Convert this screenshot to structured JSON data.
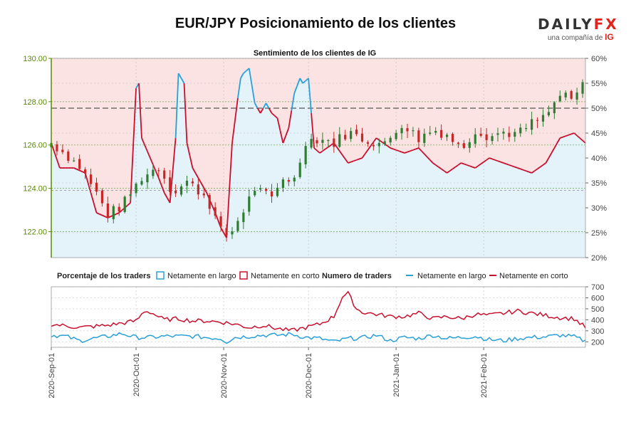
{
  "title": "EUR/JPY Posicionamiento de los clientes",
  "logo": {
    "brand_a": "DAILY",
    "brand_b": "FX",
    "tagline": "una compañía de",
    "tagline_brand": "IG"
  },
  "colors": {
    "long": "#2a9fd8",
    "short": "#c8102e",
    "price_up": "#2e7d32",
    "price_down": "#c62828",
    "long_fill": "#e4f2fa",
    "short_fill": "#fbe3e3",
    "price_axis": "#5a8a00"
  },
  "chart_data": [
    {
      "type": "candlestick",
      "title": "Sentimiento de los clientes de IG",
      "y_left_ticks": [
        "130.00",
        "128.00",
        "126.00",
        "124.00",
        "122.00"
      ],
      "y_left_range": [
        120.8,
        130.0
      ],
      "y_right_ticks": [
        "60%",
        "55%",
        "50%",
        "45%",
        "40%",
        "35%",
        "30%",
        "25%",
        "20%"
      ],
      "y_right_range": [
        20,
        60
      ],
      "x_ticks": [
        "2020-Sep-01",
        "2020-Oct-01",
        "2020-Nov-01",
        "2020-Dec-01",
        "2021-Jan-01",
        "2021-Feb-01"
      ],
      "reference_line_pct": 50,
      "price_close_anchors": [
        [
          0,
          126.1
        ],
        [
          5,
          125.6
        ],
        [
          10,
          125.0
        ],
        [
          15,
          124.0
        ],
        [
          20,
          122.8
        ],
        [
          25,
          123.2
        ],
        [
          32,
          124.5
        ],
        [
          38,
          125.0
        ],
        [
          43,
          123.8
        ],
        [
          48,
          124.3
        ],
        [
          55,
          123.6
        ],
        [
          60,
          122.0
        ],
        [
          63,
          121.8
        ],
        [
          68,
          123.0
        ],
        [
          72,
          124.0
        ],
        [
          78,
          123.5
        ],
        [
          82,
          124.5
        ],
        [
          86,
          124.4
        ],
        [
          90,
          126.2
        ],
        [
          95,
          126.3
        ],
        [
          100,
          126.1
        ],
        [
          105,
          126.6
        ],
        [
          110,
          126.3
        ],
        [
          118,
          126.0
        ],
        [
          124,
          127.0
        ],
        [
          130,
          126.3
        ],
        [
          135,
          126.7
        ],
        [
          140,
          126.5
        ],
        [
          145,
          125.8
        ],
        [
          150,
          126.7
        ],
        [
          155,
          126.4
        ],
        [
          160,
          126.6
        ],
        [
          165,
          126.5
        ],
        [
          170,
          127.0
        ],
        [
          175,
          127.3
        ],
        [
          180,
          128.3
        ],
        [
          185,
          128.0
        ],
        [
          189,
          129.2
        ]
      ],
      "long_pct_anchors": [
        [
          0,
          43
        ],
        [
          3,
          38
        ],
        [
          8,
          38
        ],
        [
          12,
          37
        ],
        [
          16,
          29
        ],
        [
          20,
          28
        ],
        [
          24,
          29
        ],
        [
          28,
          31
        ],
        [
          30,
          54
        ],
        [
          31,
          55
        ],
        [
          32,
          44
        ],
        [
          35,
          40
        ],
        [
          38,
          36
        ],
        [
          40,
          33
        ],
        [
          42,
          31
        ],
        [
          44,
          44
        ],
        [
          45,
          57
        ],
        [
          47,
          55
        ],
        [
          48,
          43
        ],
        [
          50,
          38
        ],
        [
          52,
          36
        ],
        [
          55,
          33
        ],
        [
          58,
          29
        ],
        [
          60,
          26
        ],
        [
          62,
          24
        ],
        [
          64,
          43
        ],
        [
          66,
          52
        ],
        [
          67,
          56
        ],
        [
          68,
          57
        ],
        [
          70,
          58
        ],
        [
          72,
          51
        ],
        [
          74,
          49
        ],
        [
          76,
          51
        ],
        [
          78,
          49
        ],
        [
          80,
          48
        ],
        [
          82,
          43
        ],
        [
          84,
          46
        ],
        [
          86,
          53
        ],
        [
          88,
          56
        ],
        [
          89,
          55
        ],
        [
          91,
          56
        ],
        [
          93,
          42
        ],
        [
          95,
          41
        ],
        [
          100,
          43
        ],
        [
          105,
          39
        ],
        [
          110,
          40
        ],
        [
          115,
          44
        ],
        [
          120,
          42
        ],
        [
          125,
          41
        ],
        [
          130,
          42
        ],
        [
          135,
          39
        ],
        [
          140,
          37
        ],
        [
          145,
          39
        ],
        [
          150,
          38
        ],
        [
          155,
          40
        ],
        [
          160,
          39
        ],
        [
          165,
          38
        ],
        [
          170,
          37
        ],
        [
          175,
          39
        ],
        [
          180,
          44
        ],
        [
          185,
          45
        ],
        [
          189,
          43
        ]
      ]
    },
    {
      "type": "line",
      "title": "Numero de traders",
      "y_ticks": [
        "700",
        "600",
        "500",
        "400",
        "300",
        "200"
      ],
      "y_range": [
        150,
        700
      ],
      "series": [
        {
          "name": "Netamente en largo",
          "anchors": [
            [
              0,
              260
            ],
            [
              5,
              250
            ],
            [
              10,
              210
            ],
            [
              15,
              230
            ],
            [
              20,
              250
            ],
            [
              25,
              275
            ],
            [
              30,
              240
            ],
            [
              35,
              240
            ],
            [
              40,
              250
            ],
            [
              45,
              250
            ],
            [
              50,
              250
            ],
            [
              55,
              240
            ],
            [
              60,
              230
            ],
            [
              62,
              200
            ],
            [
              65,
              240
            ],
            [
              70,
              250
            ],
            [
              75,
              260
            ],
            [
              80,
              260
            ],
            [
              85,
              270
            ],
            [
              90,
              240
            ],
            [
              95,
              230
            ],
            [
              100,
              200
            ],
            [
              105,
              230
            ],
            [
              110,
              235
            ],
            [
              115,
              260
            ],
            [
              120,
              210
            ],
            [
              125,
              240
            ],
            [
              130,
              230
            ],
            [
              135,
              260
            ],
            [
              140,
              230
            ],
            [
              145,
              240
            ],
            [
              150,
              250
            ],
            [
              155,
              220
            ],
            [
              160,
              210
            ],
            [
              165,
              230
            ],
            [
              170,
              240
            ],
            [
              175,
              245
            ],
            [
              180,
              260
            ],
            [
              185,
              245
            ],
            [
              189,
              205
            ]
          ]
        },
        {
          "name": "Netamente en corto",
          "anchors": [
            [
              0,
              360
            ],
            [
              5,
              345
            ],
            [
              10,
              330
            ],
            [
              15,
              340
            ],
            [
              20,
              350
            ],
            [
              25,
              370
            ],
            [
              30,
              390
            ],
            [
              33,
              480
            ],
            [
              35,
              470
            ],
            [
              40,
              400
            ],
            [
              45,
              410
            ],
            [
              50,
              390
            ],
            [
              55,
              390
            ],
            [
              60,
              380
            ],
            [
              65,
              360
            ],
            [
              70,
              330
            ],
            [
              75,
              350
            ],
            [
              80,
              320
            ],
            [
              85,
              300
            ],
            [
              90,
              330
            ],
            [
              95,
              360
            ],
            [
              100,
              430
            ],
            [
              103,
              610
            ],
            [
              105,
              640
            ],
            [
              108,
              500
            ],
            [
              110,
              470
            ],
            [
              115,
              450
            ],
            [
              120,
              430
            ],
            [
              125,
              430
            ],
            [
              130,
              460
            ],
            [
              135,
              410
            ],
            [
              140,
              430
            ],
            [
              145,
              410
            ],
            [
              150,
              450
            ],
            [
              155,
              440
            ],
            [
              160,
              460
            ],
            [
              165,
              480
            ],
            [
              170,
              460
            ],
            [
              175,
              440
            ],
            [
              180,
              420
            ],
            [
              185,
              410
            ],
            [
              189,
              330
            ]
          ]
        }
      ]
    }
  ],
  "legend": {
    "pct_heading": "Porcentaje de los traders",
    "pct_long": "Netamente en largo",
    "pct_short": "Netamente en corto",
    "num_heading": "Numero de traders",
    "num_long": "Netamente en largo",
    "num_short": "Netamente en corto"
  }
}
